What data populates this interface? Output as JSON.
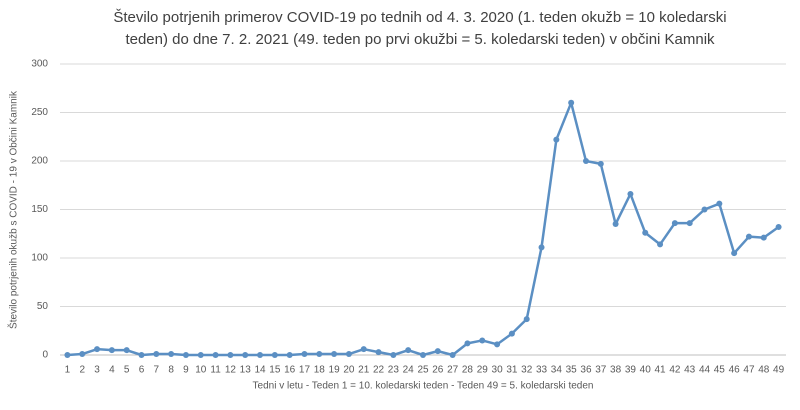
{
  "chart_data": {
    "type": "line",
    "title": [
      "Število potrjenih primerov COVID-19 po tednih od 4. 3. 2020 (1. teden okužb = 10 koledarski",
      "teden) do dne 7. 2. 2021 (49. teden po prvi okužbi = 5. koledarski teden) v občini Kamnik"
    ],
    "x_label": "Tedni v letu - Teden 1 = 10. koledarski teden - Teden 49 =  5. koledarski teden",
    "y_label": "Število potrjenih okužb  s COVID - 19 v Občini Kamnik",
    "categories": [
      1,
      2,
      3,
      4,
      5,
      6,
      7,
      8,
      9,
      10,
      11,
      12,
      13,
      14,
      15,
      16,
      17,
      18,
      19,
      20,
      21,
      22,
      23,
      24,
      25,
      26,
      27,
      28,
      29,
      30,
      31,
      32,
      33,
      34,
      35,
      36,
      37,
      38,
      39,
      40,
      41,
      42,
      43,
      44,
      45,
      46,
      47,
      48,
      49
    ],
    "values": [
      0,
      1,
      6,
      5,
      5,
      0,
      1,
      1,
      0,
      0,
      0,
      0,
      0,
      0,
      0,
      0,
      1,
      1,
      1,
      1,
      6,
      3,
      0,
      5,
      0,
      4,
      0,
      12,
      15,
      11,
      22,
      37,
      111,
      222,
      260,
      200,
      197,
      135,
      166,
      126,
      114,
      136,
      136,
      150,
      156,
      105,
      122,
      121,
      132
    ],
    "color": "#5b8fc3",
    "ylim": [
      0,
      300
    ],
    "yticks": [
      0,
      50,
      100,
      150,
      200,
      250,
      300
    ],
    "grid": true
  }
}
